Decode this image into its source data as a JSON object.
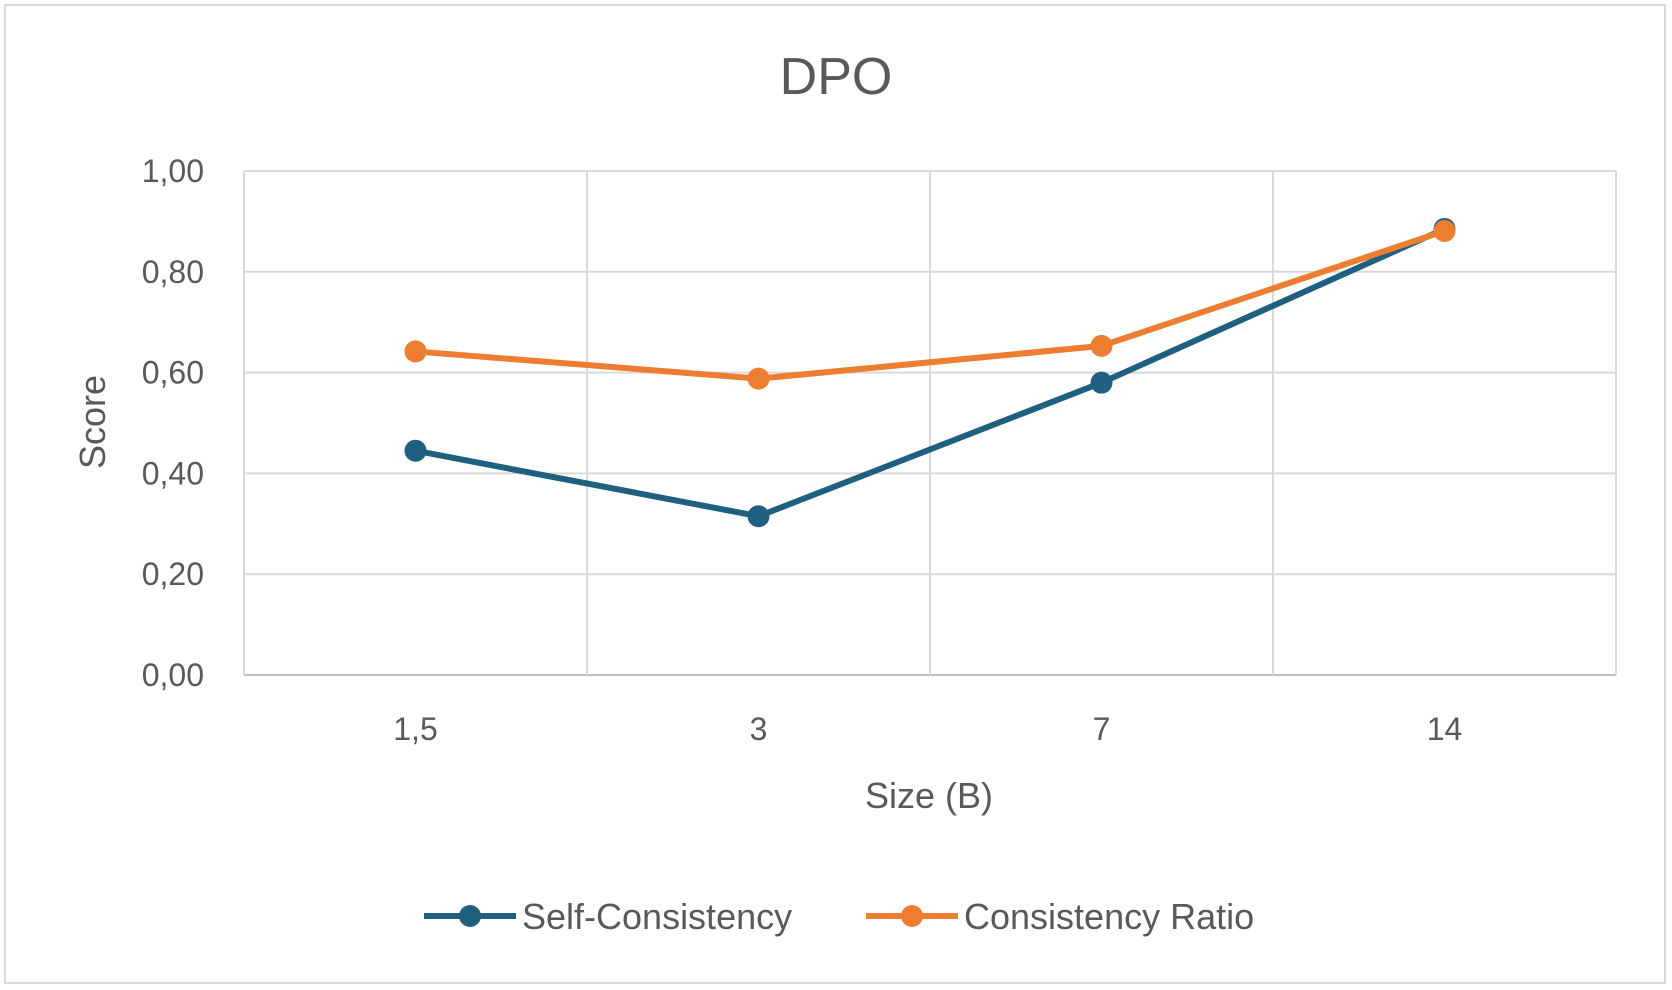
{
  "chart_data": {
    "type": "line",
    "title": "DPO",
    "xlabel": "Size (B)",
    "ylabel": "Score",
    "categories": [
      "1,5",
      "3",
      "7",
      "14"
    ],
    "ylim": [
      0,
      1
    ],
    "yticks": [
      "0,00",
      "0,20",
      "0,40",
      "0,60",
      "0,80",
      "1,00"
    ],
    "grid": true,
    "legend_position": "bottom",
    "series": [
      {
        "name": "Self-Consistency",
        "color": "#1f5f7f",
        "values": [
          0.445,
          0.315,
          0.58,
          0.885
        ]
      },
      {
        "name": "Consistency Ratio",
        "color": "#ed7d31",
        "values": [
          0.642,
          0.588,
          0.653,
          0.881
        ]
      }
    ]
  }
}
